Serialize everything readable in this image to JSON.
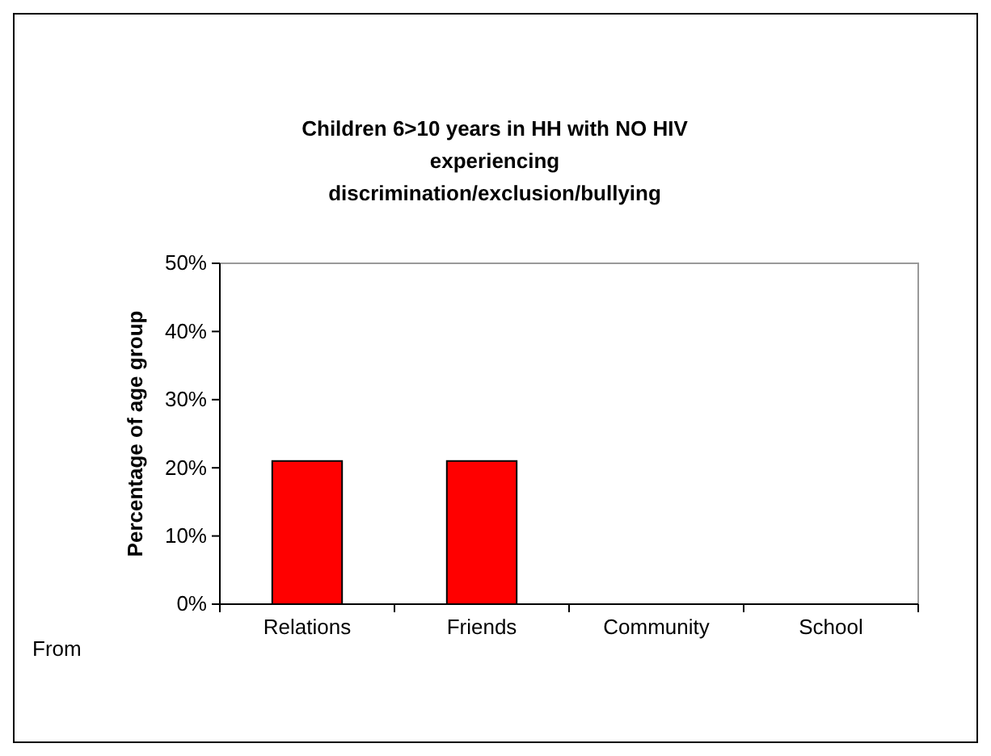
{
  "chart_data": {
    "type": "bar",
    "title": "Children 6>10 years in HH with NO HIV experiencing discrimination/exclusion/bullying",
    "ylabel": "Percentage of age group",
    "annotations": [
      "From"
    ],
    "categories": [
      "Relations",
      "Friends",
      "Community",
      "School"
    ],
    "values": [
      21,
      21,
      0,
      0
    ],
    "color": "#ff0000",
    "ylim": [
      0,
      50
    ],
    "yticks": [
      {
        "value": 0,
        "label": "0%"
      },
      {
        "value": 10,
        "label": "10%"
      },
      {
        "value": 20,
        "label": "20%"
      },
      {
        "value": 30,
        "label": "30%"
      },
      {
        "value": 40,
        "label": "40%"
      },
      {
        "value": 50,
        "label": "50%"
      }
    ],
    "grid": false
  }
}
